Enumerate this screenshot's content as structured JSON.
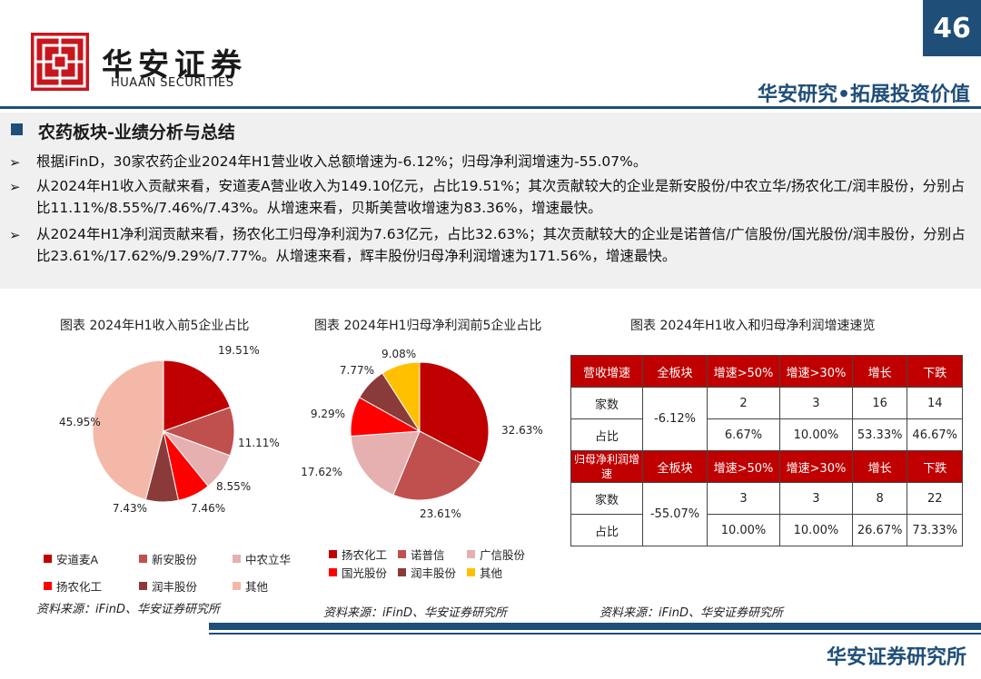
{
  "header": {
    "brand_cn": "华安证券",
    "brand_en": "HUAAN SECURITIES",
    "page_number": "46",
    "slogan": "华安研究•拓展投资价值"
  },
  "section": {
    "title": "农药板块-业绩分析与总结",
    "bullets": [
      "根据iFinD，30家农药企业2024年H1营业收入总额增速为-6.12%；归母净利润增速为-55.07%。",
      "从2024年H1收入贡献来看，安道麦A营业收入为149.10亿元，占比19.51%；其次贡献较大的企业是新安股份/中农立华/扬农化工/润丰股份，分别占比11.11%/8.55%/7.46%/7.43%。从增速来看，贝斯美营收增速为83.36%，增速最快。",
      "从2024年H1净利润贡献来看，扬农化工归母净利润为7.63亿元，占比32.63%；其次贡献较大的企业是诺普信/广信股份/国光股份/润丰股份，分别占比23.61%/17.62%/9.29%/7.77%。从增速来看，辉丰股份归母净利润增速为171.56%，增速最快。"
    ],
    "bullet_glyph": "➢"
  },
  "chart_data": [
    {
      "type": "pie",
      "title": "图表 2024年H1收入前5企业占比",
      "labels": [
        "安道麦A",
        "新安股份",
        "中农立华",
        "扬农化工",
        "润丰股份",
        "其他"
      ],
      "values": [
        19.51,
        11.11,
        8.55,
        7.46,
        7.43,
        45.95
      ],
      "value_labels": [
        "19.51%",
        "11.11%",
        "8.55%",
        "7.46%",
        "7.43%",
        "45.95%"
      ],
      "colors": [
        "#c00000",
        "#c0504d",
        "#e6b0b0",
        "#ff0000",
        "#8b3a3a",
        "#f4b8a8"
      ],
      "legend_position": "bottom",
      "source": "资料来源：iFinD、华安证券研究所"
    },
    {
      "type": "pie",
      "title": "图表 2024年H1归母净利润前5企业占比",
      "labels": [
        "扬农化工",
        "诺普信",
        "广信股份",
        "国光股份",
        "润丰股份",
        "其他"
      ],
      "values": [
        32.63,
        23.61,
        17.62,
        9.29,
        7.77,
        9.08
      ],
      "value_labels": [
        "32.63%",
        "23.61%",
        "17.62%",
        "9.29%",
        "7.77%",
        "9.08%"
      ],
      "colors": [
        "#c00000",
        "#c0504d",
        "#e6b0b0",
        "#ff0000",
        "#8b3a3a",
        "#ffc000"
      ],
      "legend_position": "bottom",
      "source": "资料来源：iFinD、华安证券研究所"
    },
    {
      "type": "table",
      "title": "图表 2024年H1收入和归母净利润增速速览",
      "sections": [
        {
          "header": [
            "营收增速",
            "全板块",
            "增速>50%",
            "增速>30%",
            "增长",
            "下跌"
          ],
          "overall": "-6.12%",
          "rows": [
            {
              "label": "家数",
              "cells": [
                "2",
                "3",
                "16",
                "14"
              ]
            },
            {
              "label": "占比",
              "cells": [
                "6.67%",
                "10.00%",
                "53.33%",
                "46.67%"
              ]
            }
          ]
        },
        {
          "header": [
            "归母净利润增速",
            "全板块",
            "增速>50%",
            "增速>30%",
            "增长",
            "下跌"
          ],
          "overall": "-55.07%",
          "rows": [
            {
              "label": "家数",
              "cells": [
                "3",
                "3",
                "8",
                "22"
              ]
            },
            {
              "label": "占比",
              "cells": [
                "10.00%",
                "10.00%",
                "26.67%",
                "73.33%"
              ]
            }
          ]
        }
      ],
      "header_color": "#c00000",
      "source": "资料来源：iFinD、华安证券研究所"
    }
  ],
  "footer": {
    "text": "华安证券研究所"
  }
}
